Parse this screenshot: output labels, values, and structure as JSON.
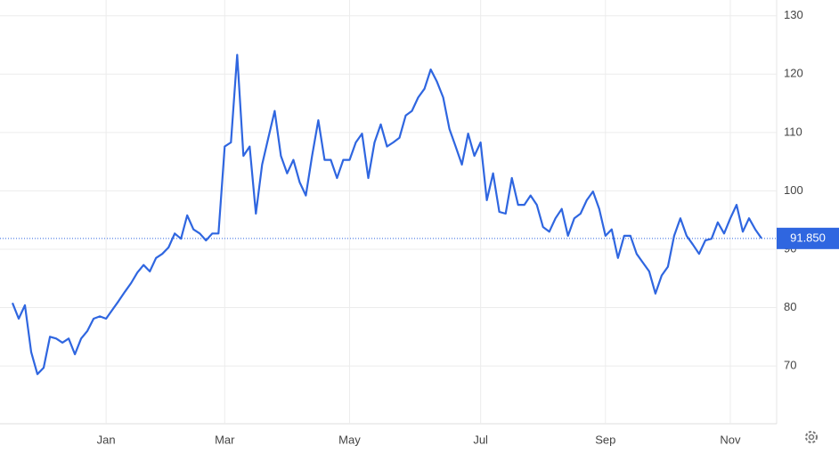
{
  "chart_data": {
    "type": "line",
    "categories": [
      null,
      null,
      null,
      null,
      null,
      null,
      null,
      null,
      null,
      null,
      null,
      null,
      null,
      null,
      null,
      "Jan",
      null,
      null,
      null,
      null,
      null,
      null,
      null,
      null,
      null,
      null,
      null,
      null,
      null,
      null,
      null,
      null,
      null,
      null,
      "Mar",
      null,
      null,
      null,
      null,
      null,
      null,
      null,
      null,
      null,
      null,
      null,
      null,
      null,
      null,
      null,
      null,
      null,
      null,
      null,
      "May",
      null,
      null,
      null,
      null,
      null,
      null,
      null,
      null,
      null,
      null,
      null,
      null,
      null,
      null,
      null,
      null,
      null,
      null,
      null,
      null,
      "Jul",
      null,
      null,
      null,
      null,
      null,
      null,
      null,
      null,
      null,
      null,
      null,
      null,
      null,
      null,
      null,
      null,
      null,
      null,
      null,
      "Sep",
      null,
      null,
      null,
      null,
      null,
      null,
      null,
      null,
      null,
      null,
      null,
      null,
      null,
      null,
      null,
      null,
      null,
      null,
      null,
      "Nov",
      null,
      null,
      null,
      null,
      null
    ],
    "series": [
      {
        "color": "#2f66e0",
        "values": [
          80.8,
          78.1,
          80.4,
          72.4,
          68.6,
          69.7,
          75.0,
          74.7,
          74.0,
          74.7,
          72.0,
          74.7,
          76.0,
          78.1,
          78.5,
          78.1,
          79.6,
          81.1,
          82.7,
          84.2,
          86.0,
          87.3,
          86.2,
          88.5,
          89.2,
          90.3,
          92.7,
          91.8,
          95.8,
          93.4,
          92.7,
          91.5,
          92.7,
          92.7,
          107.6,
          108.3,
          123.3,
          106.0,
          107.6,
          96.1,
          104.5,
          109.1,
          113.7,
          106.0,
          103.0,
          105.3,
          101.5,
          99.2,
          106.0,
          112.1,
          105.3,
          105.3,
          102.2,
          105.3,
          105.3,
          108.3,
          109.8,
          102.2,
          108.3,
          111.4,
          107.6,
          108.3,
          109.1,
          112.9,
          113.7,
          116.0,
          117.5,
          120.8,
          118.7,
          116.0,
          110.6,
          107.6,
          104.5,
          109.8,
          106.0,
          108.3,
          98.4,
          103.0,
          96.4,
          96.1,
          102.2,
          97.6,
          97.6,
          99.2,
          97.6,
          93.8,
          93.0,
          95.3,
          96.9,
          92.3,
          95.3,
          96.1,
          98.4,
          99.9,
          96.9,
          92.3,
          93.4,
          88.5,
          92.3,
          92.3,
          89.2,
          87.7,
          86.2,
          82.4,
          85.5,
          87.0,
          92.3,
          95.3,
          92.3,
          90.8,
          89.2,
          91.5,
          91.8,
          94.6,
          92.7,
          95.3,
          97.6,
          93.0,
          95.3,
          93.4,
          91.85
        ]
      }
    ],
    "ylim": [
      60.1,
      132.7
    ],
    "yticks": [
      70,
      80,
      90,
      100,
      110,
      120,
      130
    ],
    "grid": true,
    "last_price": {
      "value": 91.85,
      "label": "91.850"
    }
  }
}
